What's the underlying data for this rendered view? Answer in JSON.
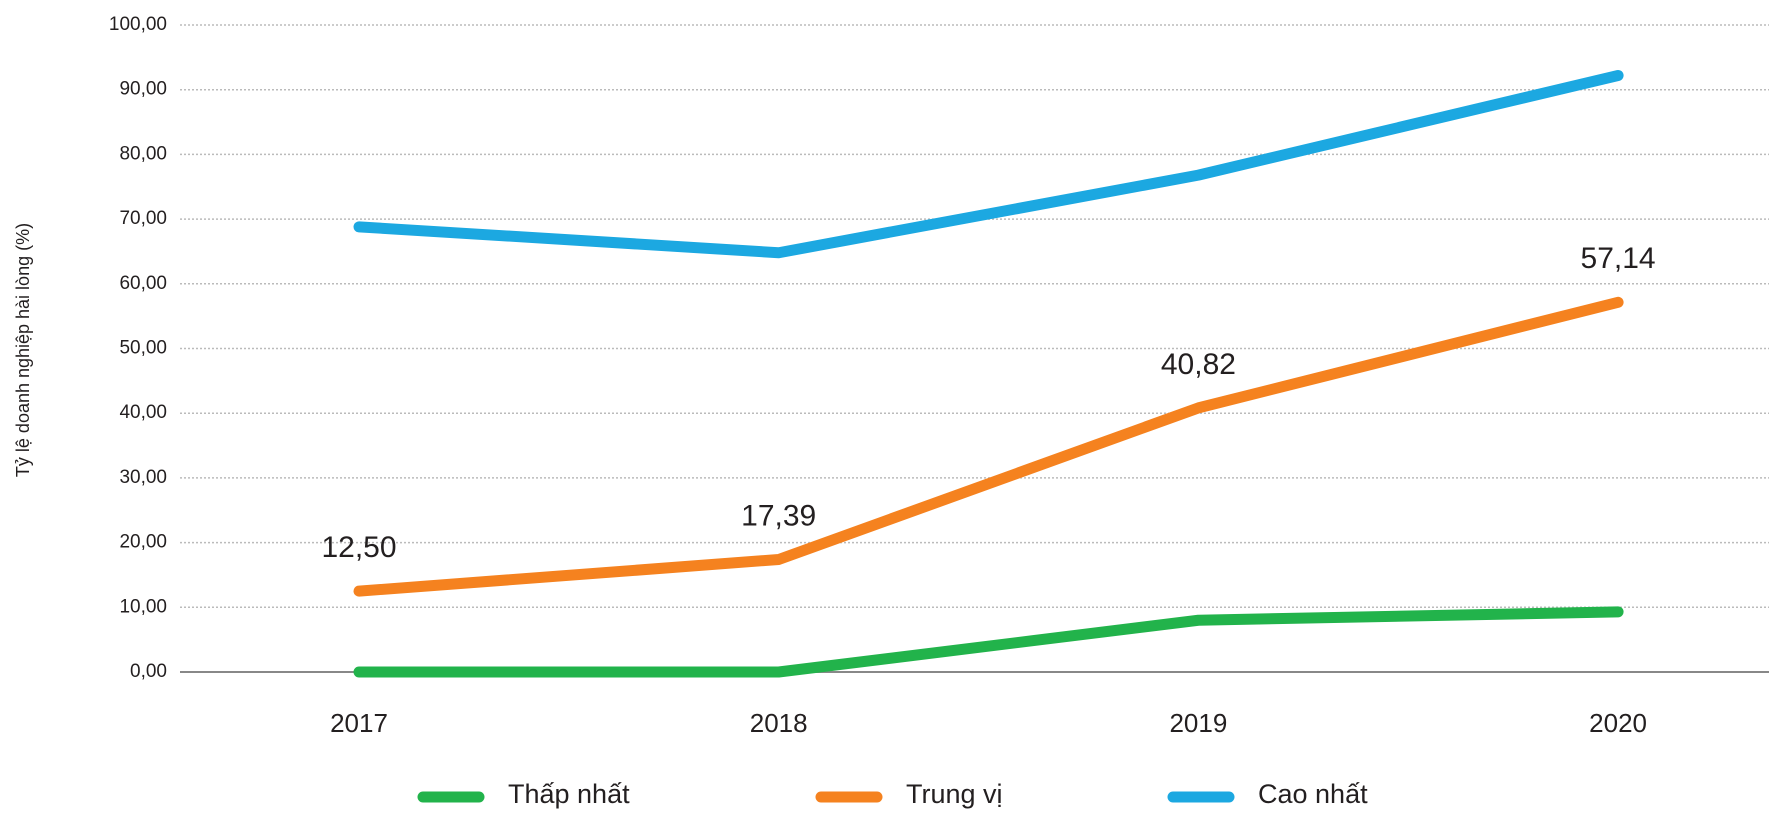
{
  "chart_data": {
    "type": "line",
    "y_label": "Tỷ lệ doanh nghiệp hài lòng (%)",
    "categories": [
      "2017",
      "2018",
      "2019",
      "2020"
    ],
    "series": [
      {
        "name": "Thấp nhất",
        "color": "#22b34b",
        "values": [
          0,
          0,
          8.0,
          9.3
        ]
      },
      {
        "name": "Trung vị",
        "color": "#f5821f",
        "values": [
          12.5,
          17.39,
          40.82,
          57.14
        ],
        "value_labels": [
          "12,50",
          "17,39",
          "40,82",
          "57,14"
        ]
      },
      {
        "name": "Cao nhất",
        "color": "#1ca8e1",
        "values": [
          68.8,
          64.8,
          76.8,
          92.2
        ]
      }
    ],
    "ylim": [
      0,
      100
    ],
    "yticks": [
      {
        "value": 0,
        "label": "0,00"
      },
      {
        "value": 10,
        "label": "10,00"
      },
      {
        "value": 20,
        "label": "20,00"
      },
      {
        "value": 30,
        "label": "30,00"
      },
      {
        "value": 40,
        "label": "40,00"
      },
      {
        "value": 50,
        "label": "50,00"
      },
      {
        "value": 60,
        "label": "60,00"
      },
      {
        "value": 70,
        "label": "70,00"
      },
      {
        "value": 80,
        "label": "80,00"
      },
      {
        "value": 90,
        "label": "90,00"
      },
      {
        "value": 100,
        "label": "100,00"
      }
    ],
    "grid": true
  }
}
